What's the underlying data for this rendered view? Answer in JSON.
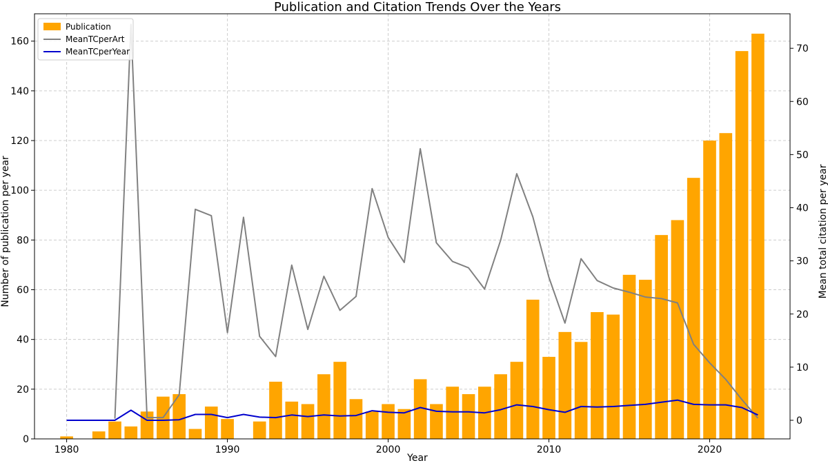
{
  "chart_data": {
    "type": "bar",
    "title": "Publication and Citation Trends Over the Years",
    "xlabel": "Year",
    "ylabel_left": "Number of publication per year",
    "ylabel_right": "Mean total citation per year",
    "xlim": [
      1978,
      2025
    ],
    "ylim_left": [
      0,
      171
    ],
    "ylim_right": [
      -3.5,
      76.5
    ],
    "x_ticks": [
      1980,
      1990,
      2000,
      2010,
      2020
    ],
    "y_left_ticks": [
      0,
      20,
      40,
      60,
      80,
      100,
      120,
      140,
      160
    ],
    "y_right_ticks": [
      0,
      10,
      20,
      30,
      40,
      50,
      60,
      70
    ],
    "grid": true,
    "legend_position": "top-left",
    "years": [
      1980,
      1981,
      1982,
      1983,
      1984,
      1985,
      1986,
      1987,
      1988,
      1989,
      1990,
      1991,
      1992,
      1993,
      1994,
      1995,
      1996,
      1997,
      1998,
      1999,
      2000,
      2001,
      2002,
      2003,
      2004,
      2005,
      2006,
      2007,
      2008,
      2009,
      2010,
      2011,
      2012,
      2013,
      2014,
      2015,
      2016,
      2017,
      2018,
      2019,
      2020,
      2021,
      2022,
      2023
    ],
    "series": [
      {
        "name": "Publication",
        "kind": "bar",
        "axis": "left",
        "color": "#FFA500",
        "values": [
          1,
          0,
          3,
          7,
          5,
          11,
          17,
          18,
          4,
          13,
          8,
          0,
          7,
          23,
          15,
          14,
          26,
          31,
          16,
          11,
          14,
          12,
          24,
          14,
          21,
          18,
          21,
          26,
          31,
          56,
          33,
          43,
          39,
          51,
          50,
          66,
          64,
          82,
          88,
          105,
          120,
          123,
          156,
          163
        ]
      },
      {
        "name": "MeanTCperArt",
        "kind": "line",
        "axis": "right",
        "color": "#808080",
        "values": [
          null,
          null,
          null,
          0.3,
          74.5,
          0.5,
          0.5,
          4.8,
          39.7,
          38.5,
          16.5,
          38.2,
          15.8,
          12,
          29.2,
          17.1,
          27.1,
          20.7,
          23.3,
          43.6,
          34.4,
          29.7,
          51.1,
          33.4,
          29.9,
          28.7,
          24.7,
          33.9,
          46.4,
          38.3,
          26.9,
          18.3,
          30.4,
          26.3,
          24.9,
          24.1,
          23.2,
          22.9,
          22.1,
          14.3,
          10.8,
          7.7,
          3.9,
          0.4
        ]
      },
      {
        "name": "MeanTCperYear",
        "kind": "line",
        "axis": "right",
        "color": "#0000CD",
        "values": [
          0,
          null,
          0,
          0,
          1.9,
          0,
          0,
          0.1,
          1.1,
          1.1,
          0.5,
          1.1,
          0.6,
          0.5,
          1,
          0.7,
          1,
          0.8,
          0.9,
          1.8,
          1.5,
          1.4,
          2.4,
          1.7,
          1.6,
          1.6,
          1.4,
          2,
          2.9,
          2.6,
          2,
          1.5,
          2.6,
          2.5,
          2.6,
          2.8,
          3,
          3.4,
          3.8,
          3,
          2.9,
          2.9,
          2.4,
          1
        ]
      }
    ]
  }
}
